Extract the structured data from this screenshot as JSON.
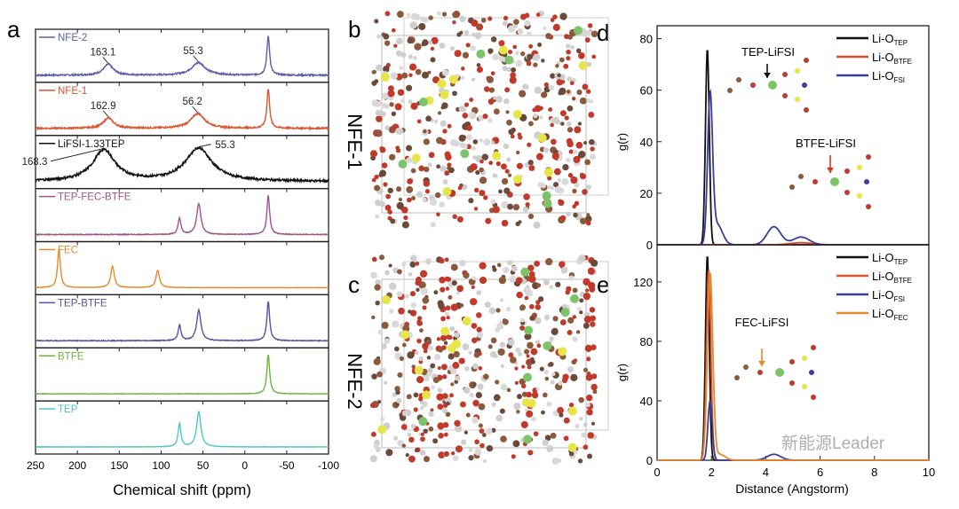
{
  "panel_letters": {
    "a": "a",
    "b": "b",
    "c": "c",
    "d": "d",
    "e": "e"
  },
  "structures": {
    "b_label": "NFE-1",
    "c_label": "NFE-2"
  },
  "watermark": "新能源Leader",
  "chart_data": [
    {
      "id": "a",
      "type": "line",
      "title": "",
      "xlabel": "Chemical shift (ppm)",
      "ylabel": "",
      "xlim": [
        250,
        -100
      ],
      "xticks": [
        "250",
        "200",
        "150",
        "100",
        "50",
        "0",
        "-50",
        "-100"
      ],
      "xtick_values": [
        250,
        200,
        150,
        100,
        50,
        0,
        -50,
        -100
      ],
      "series": [
        {
          "name": "NFE-2",
          "color": "#5b5ea6",
          "noise": 0.04,
          "peaks": [
            [
              163.1,
              0.28,
              7
            ],
            [
              55.3,
              0.32,
              10
            ],
            [
              -28,
              1,
              2
            ]
          ],
          "annotations": [
            "163.1",
            "55.3"
          ]
        },
        {
          "name": "NFE-1",
          "color": "#d9542f",
          "noise": 0.04,
          "peaks": [
            [
              162.9,
              0.27,
              7
            ],
            [
              56.2,
              0.38,
              10
            ],
            [
              -28,
              1,
              2
            ]
          ],
          "annotations": [
            "162.9",
            "56.2"
          ]
        },
        {
          "name": "LiFSI-1.33TEP",
          "color": "#111111",
          "noise": 0.06,
          "peaks": [
            [
              168.3,
              0.8,
              16
            ],
            [
              55.3,
              0.85,
              19
            ]
          ],
          "annotations": [
            "168.3",
            "55.3"
          ]
        },
        {
          "name": "TEP-FEC-BTFE",
          "color": "#a0528f",
          "noise": 0.02,
          "peaks": [
            [
              78,
              0.42,
              2
            ],
            [
              55,
              0.8,
              3
            ],
            [
              -28,
              1,
              2
            ]
          ],
          "annotations": []
        },
        {
          "name": "FEC",
          "color": "#e8892a",
          "noise": 0.01,
          "peaks": [
            [
              222,
              1,
              2
            ],
            [
              158,
              0.55,
              2.5
            ],
            [
              104,
              0.45,
              2.5
            ]
          ],
          "annotations": []
        },
        {
          "name": "TEP-BTFE",
          "color": "#5c4ea0",
          "noise": 0.02,
          "peaks": [
            [
              78,
              0.4,
              2
            ],
            [
              55,
              0.78,
              3
            ],
            [
              -28,
              1,
              2
            ]
          ],
          "annotations": []
        },
        {
          "name": "BTFE",
          "color": "#6db33f",
          "noise": 0.01,
          "peaks": [
            [
              -28,
              1,
              2
            ]
          ],
          "annotations": []
        },
        {
          "name": "TEP",
          "color": "#4fc6c6",
          "noise": 0.01,
          "peaks": [
            [
              78,
              0.6,
              2
            ],
            [
              55,
              0.9,
              3
            ]
          ],
          "annotations": []
        }
      ]
    },
    {
      "id": "d",
      "type": "line",
      "xlabel": "",
      "ylabel": "g(r)",
      "xlim": [
        0,
        10
      ],
      "ylim": [
        0,
        85
      ],
      "yticks": [
        "0",
        "20",
        "40",
        "60",
        "80"
      ],
      "ytick_values": [
        0,
        20,
        40,
        60,
        80
      ],
      "annotations": [
        "TEP-LiFSI",
        "BTFE-LiFSI"
      ],
      "series": [
        {
          "name": "Li-O",
          "sub": "TEP",
          "color": "#111111",
          "peaks": [
            [
              1.85,
              76,
              0.07
            ]
          ]
        },
        {
          "name": "Li-O",
          "sub": "BTFE",
          "color": "#e0462b",
          "peaks": [
            [
              5.3,
              0.8,
              0.4
            ]
          ]
        },
        {
          "name": "Li-O",
          "sub": "FSI",
          "color": "#3b3e9a",
          "peaks": [
            [
              1.95,
              56,
              0.09
            ],
            [
              2.2,
              8,
              0.2
            ],
            [
              4.3,
              7,
              0.25
            ],
            [
              5.3,
              3,
              0.3
            ]
          ]
        }
      ]
    },
    {
      "id": "e",
      "type": "line",
      "xlabel": "Distance (Angstorm)",
      "ylabel": "g(r)",
      "xlim": [
        0,
        10
      ],
      "ylim": [
        0,
        145
      ],
      "xticks": [
        "0",
        "2",
        "4",
        "6",
        "8",
        "10"
      ],
      "xtick_values": [
        0,
        2,
        4,
        6,
        8,
        10
      ],
      "yticks": [
        "0",
        "40",
        "80",
        "120"
      ],
      "ytick_values": [
        0,
        40,
        80,
        120
      ],
      "annotations": [
        "FEC-LiFSI"
      ],
      "series": [
        {
          "name": "Li-O",
          "sub": "TEP",
          "color": "#111111",
          "peaks": [
            [
              1.85,
              138,
              0.07
            ]
          ]
        },
        {
          "name": "Li-O",
          "sub": "BTFE",
          "color": "#d9542f",
          "peaks": [
            [
              1.9,
              128,
              0.08
            ]
          ]
        },
        {
          "name": "Li-O",
          "sub": "FSI",
          "color": "#3b3e9a",
          "peaks": [
            [
              1.95,
              40,
              0.08
            ],
            [
              4.3,
              4,
              0.25
            ]
          ]
        },
        {
          "name": "Li-O",
          "sub": "FEC",
          "color": "#e8892a",
          "peaks": [
            [
              1.95,
              125,
              0.1
            ],
            [
              2.3,
              4,
              0.2
            ]
          ]
        }
      ]
    }
  ]
}
